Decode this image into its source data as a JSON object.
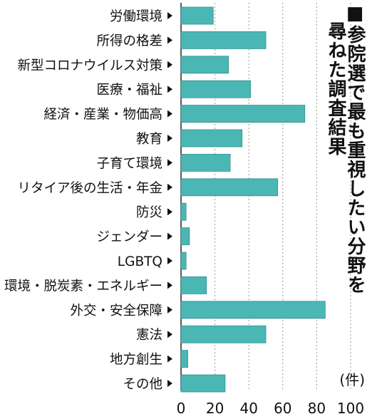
{
  "title": {
    "line1": "■参院選で最も重視したい分野を",
    "line2": "尋ねた調査結果"
  },
  "chart_data": {
    "type": "bar",
    "orientation": "horizontal",
    "unit": "(件)",
    "categories": [
      "労働環境",
      "所得の格差",
      "新型コロナウイルス対策",
      "医療・福祉",
      "経済・産業・物価高",
      "教育",
      "子育て環境",
      "リタイア後の生活・年金",
      "防災",
      "ジェンダー",
      "LGBTQ",
      "環境・脱炭素・エネルギー",
      "外交・安全保障",
      "憲法",
      "地方創生",
      "その他"
    ],
    "values": [
      19,
      50,
      28,
      41,
      73,
      36,
      29,
      57,
      3,
      5,
      3,
      15,
      85,
      50,
      4,
      26
    ],
    "xlim": [
      0,
      100
    ],
    "xticks": [
      0,
      20,
      40,
      60,
      80,
      100
    ],
    "xtick_labels": [
      "0",
      "20",
      "40",
      "60",
      "80",
      "100"
    ],
    "grid": "vertical-dotted",
    "bar_color": "#4bb7b5",
    "bar_border_color": "#2f8f8d"
  }
}
